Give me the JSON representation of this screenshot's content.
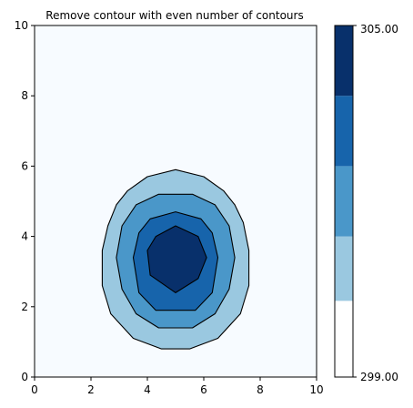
{
  "chart_data": {
    "type": "contourf",
    "title": "Remove contour with even number of contours",
    "xlabel": "",
    "ylabel": "",
    "xlim": [
      0,
      10
    ],
    "ylim": [
      0,
      10
    ],
    "x_ticks": [
      "0",
      "2",
      "4",
      "6",
      "8",
      "10"
    ],
    "y_ticks": [
      "0",
      "2",
      "4",
      "6",
      "8",
      "10"
    ],
    "grid": false,
    "field": {
      "background_level": 299,
      "center": [
        5,
        3.4
      ],
      "levels": [
        {
          "level": 301,
          "color": "#9ac8e0",
          "contour": [
            [
              4.5,
              0.8
            ],
            [
              5.5,
              0.8
            ],
            [
              6.5,
              1.1
            ],
            [
              7.3,
              1.8
            ],
            [
              7.6,
              2.6
            ],
            [
              7.6,
              3.6
            ],
            [
              7.4,
              4.4
            ],
            [
              7.1,
              4.9
            ],
            [
              6.7,
              5.3
            ],
            [
              6,
              5.7
            ],
            [
              5,
              5.9
            ],
            [
              4,
              5.7
            ],
            [
              3.3,
              5.3
            ],
            [
              2.9,
              4.9
            ],
            [
              2.6,
              4.3
            ],
            [
              2.4,
              3.6
            ],
            [
              2.4,
              2.6
            ],
            [
              2.7,
              1.8
            ],
            [
              3.5,
              1.1
            ]
          ]
        },
        {
          "level": 302,
          "color": "#4a97c9",
          "contour": [
            [
              4.4,
              1.4
            ],
            [
              5.6,
              1.4
            ],
            [
              6.4,
              1.8
            ],
            [
              6.9,
              2.5
            ],
            [
              7.1,
              3.4
            ],
            [
              6.9,
              4.3
            ],
            [
              6.4,
              4.9
            ],
            [
              5.6,
              5.2
            ],
            [
              4.4,
              5.2
            ],
            [
              3.6,
              4.9
            ],
            [
              3.1,
              4.3
            ],
            [
              2.9,
              3.4
            ],
            [
              3.1,
              2.5
            ],
            [
              3.6,
              1.8
            ]
          ]
        },
        {
          "level": 303,
          "color": "#1764ab",
          "contour": [
            [
              4.3,
              1.9
            ],
            [
              5.7,
              1.9
            ],
            [
              6.3,
              2.4
            ],
            [
              6.5,
              3.4
            ],
            [
              6.3,
              4.1
            ],
            [
              5.9,
              4.5
            ],
            [
              5,
              4.7
            ],
            [
              4.1,
              4.5
            ],
            [
              3.7,
              4.1
            ],
            [
              3.5,
              3.4
            ],
            [
              3.7,
              2.4
            ]
          ]
        },
        {
          "level": 304,
          "color": "#08306b",
          "contour": [
            [
              5,
              2.4
            ],
            [
              5.8,
              2.8
            ],
            [
              6.1,
              3.4
            ],
            [
              5.8,
              4.0
            ],
            [
              5,
              4.3
            ],
            [
              4.3,
              4.0
            ],
            [
              4.0,
              3.6
            ],
            [
              4.1,
              2.9
            ]
          ]
        }
      ]
    },
    "colorbar": {
      "top_label": "305.00",
      "bottom_label": "299.00",
      "min": 299,
      "max": 305,
      "bands": [
        {
          "from": 299,
          "to": 300.3,
          "color": "#ffffff"
        },
        {
          "from": 300.3,
          "to": 301.4,
          "color": "#9ac8e0"
        },
        {
          "from": 301.4,
          "to": 302.6,
          "color": "#4a97c9"
        },
        {
          "from": 302.6,
          "to": 303.8,
          "color": "#1764ab"
        },
        {
          "from": 303.8,
          "to": 305,
          "color": "#08306b"
        }
      ]
    },
    "colors": {
      "background_fill": "#f7fbff",
      "contour_line": "#000000"
    }
  }
}
